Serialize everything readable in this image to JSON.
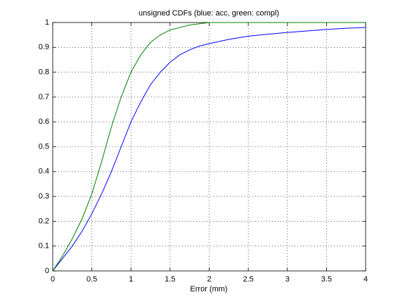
{
  "chart_data": {
    "type": "line",
    "title": "unsigned CDFs (blue: acc, green: compl)",
    "x_label": "Error (mm)",
    "x": [
      0,
      0.125,
      0.25,
      0.375,
      0.5,
      0.625,
      0.75,
      0.875,
      1,
      1.125,
      1.25,
      1.375,
      1.5,
      1.625,
      1.75,
      1.875,
      2,
      2.25,
      2.5,
      2.75,
      3,
      3.25,
      3.5,
      3.75,
      4
    ],
    "series": [
      {
        "color": "#0000ff",
        "values": [
          0,
          0.05,
          0.1,
          0.16,
          0.23,
          0.31,
          0.4,
          0.5,
          0.6,
          0.68,
          0.75,
          0.8,
          0.84,
          0.87,
          0.89,
          0.905,
          0.915,
          0.932,
          0.945,
          0.953,
          0.96,
          0.966,
          0.972,
          0.977,
          0.98
        ]
      },
      {
        "color": "#008000",
        "values": [
          0,
          0.06,
          0.13,
          0.21,
          0.31,
          0.44,
          0.58,
          0.7,
          0.8,
          0.87,
          0.92,
          0.95,
          0.97,
          0.98,
          0.99,
          0.995,
          1,
          1,
          1,
          1,
          1,
          1,
          1,
          1,
          1
        ]
      }
    ],
    "xlim": [
      0,
      4
    ],
    "xticks": [
      0,
      0.5,
      1,
      1.5,
      2,
      2.5,
      3,
      3.5,
      4
    ],
    "ylim": [
      0,
      1
    ],
    "yticks": [
      0,
      0.1,
      0.2,
      0.3,
      0.4,
      0.5,
      0.6,
      0.7,
      0.8,
      0.9,
      1
    ],
    "grid": true
  }
}
